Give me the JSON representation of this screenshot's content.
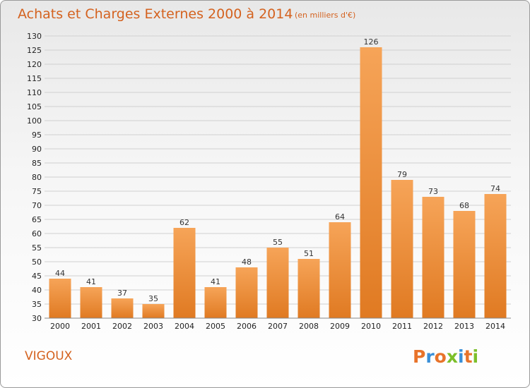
{
  "chart_data": {
    "type": "bar",
    "title": "Achats et Charges Externes 2000 à 2014",
    "subtitle": "(en milliers d'€)",
    "categories": [
      "2000",
      "2001",
      "2002",
      "2003",
      "2004",
      "2005",
      "2006",
      "2007",
      "2008",
      "2009",
      "2010",
      "2011",
      "2012",
      "2013",
      "2014"
    ],
    "values": [
      44,
      41,
      37,
      35,
      62,
      41,
      48,
      55,
      51,
      64,
      126,
      79,
      73,
      68,
      74
    ],
    "ylim": [
      30,
      130
    ],
    "yticks": [
      30,
      35,
      40,
      45,
      50,
      55,
      60,
      65,
      70,
      75,
      80,
      85,
      90,
      95,
      100,
      105,
      110,
      115,
      120,
      125,
      130
    ],
    "grid": true,
    "xlabel": "",
    "ylabel": "",
    "colors": {
      "bar_light": "#f6a458",
      "bar_dark": "#e07a22",
      "title": "#d4621f",
      "grid": "#d0d0d0"
    }
  },
  "footer": {
    "commune": "VIGOUX",
    "logo_text": "Proxiti",
    "logo_colors": [
      "#e8732a",
      "#3a8fd8",
      "#e8732a",
      "#7cbf2a",
      "#3a8fd8",
      "#e8732a",
      "#7cbf2a"
    ]
  }
}
